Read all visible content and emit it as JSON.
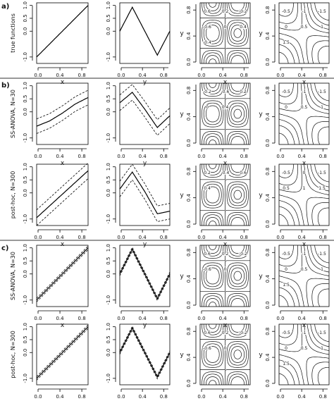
{
  "panel_labels": [
    "a)",
    "b)",
    "c)"
  ],
  "row_labels": [
    "true functions",
    "SS-ANOVA, N=30",
    "post-hoc, N=300",
    "SS-ANOVA, N=30",
    "post-hoc, N=300"
  ],
  "axis_labels": {
    "x": "x",
    "y": "y"
  },
  "x_ticks": [
    "0.0",
    "0.4",
    "0.8"
  ],
  "y_ticks_1d": [
    "-1.0",
    "0.0",
    "0.5",
    "1.0"
  ],
  "y_ticks_2d": [
    "0.0",
    "0.4",
    "0.8"
  ],
  "chart_data": [
    {
      "type": "line",
      "row": "a",
      "panel": "f1",
      "x": [
        0.0,
        0.25,
        0.5,
        0.75,
        1.0
      ],
      "series": [
        {
          "values": [
            -1.0,
            -0.5,
            0.0,
            0.5,
            1.0
          ]
        }
      ],
      "ylim": [
        -1.25,
        1.1
      ],
      "xlabel": "x"
    },
    {
      "type": "line",
      "row": "a",
      "panel": "f2",
      "x": [
        0.0,
        0.25,
        0.5,
        0.75,
        1.0
      ],
      "series": [
        {
          "values": [
            0.0,
            0.93,
            0.0,
            -0.93,
            0.0
          ]
        }
      ],
      "ylim": [
        -1.25,
        1.1
      ],
      "xlabel": "y"
    },
    {
      "type": "contour",
      "row": "a",
      "panel": "f3",
      "levels_labeled": [
        "0.6",
        "0.2",
        "-0.2",
        "-0.6",
        "0",
        "0.4",
        "-0.4"
      ],
      "xlabel": "x",
      "ylabel": "y"
    },
    {
      "type": "contour",
      "row": "a",
      "panel": "f4",
      "levels_labeled": [
        "-0.5",
        "-1",
        "-1.5",
        "0",
        "0.5",
        "1",
        "1.5"
      ],
      "xlabel": "x",
      "ylabel": "y"
    },
    {
      "type": "line",
      "row": "b1",
      "panel": "f1",
      "x": [
        0.0,
        0.25,
        0.5,
        0.75,
        1.0
      ],
      "series": [
        {
          "values": [
            -0.55,
            -0.35,
            -0.05,
            0.3,
            0.55
          ]
        }
      ],
      "band_width": 0.28,
      "ylim": [
        -1.25,
        1.1
      ],
      "xlabel": "x"
    },
    {
      "type": "line",
      "row": "b1",
      "panel": "f2",
      "x": [
        0.0,
        0.25,
        0.5,
        0.75,
        1.0
      ],
      "series": [
        {
          "values": [
            0.35,
            0.75,
            0.1,
            -0.6,
            -0.15
          ]
        }
      ],
      "band_width": 0.3,
      "ylim": [
        -1.25,
        1.1
      ],
      "xlabel": "y"
    },
    {
      "type": "contour",
      "row": "b1",
      "panel": "f3",
      "levels_labeled": [
        "-0.2",
        "-0.6",
        "0.2",
        "0",
        "0.4"
      ],
      "xlabel": "x",
      "ylabel": "y"
    },
    {
      "type": "contour",
      "row": "b1",
      "panel": "f4",
      "levels_labeled": [
        "-0.5",
        "-1",
        "-1.5",
        "0",
        "0.5",
        "1"
      ],
      "xlabel": "x",
      "ylabel": "y"
    },
    {
      "type": "line",
      "row": "b2",
      "panel": "f1",
      "x": [
        0.0,
        0.25,
        0.5,
        0.75,
        1.0
      ],
      "series": [
        {
          "values": [
            -0.95,
            -0.5,
            -0.05,
            0.4,
            0.85
          ]
        }
      ],
      "band_width": 0.3,
      "ylim": [
        -1.25,
        1.1
      ],
      "xlabel": "x"
    },
    {
      "type": "line",
      "row": "b2",
      "panel": "f2",
      "x": [
        0.0,
        0.25,
        0.5,
        0.75,
        1.0
      ],
      "series": [
        {
          "values": [
            0.15,
            0.8,
            0.05,
            -0.8,
            -0.7
          ]
        }
      ],
      "band_width": 0.3,
      "ylim": [
        -1.25,
        1.1
      ],
      "xlabel": "y"
    },
    {
      "type": "contour",
      "row": "b2",
      "panel": "f3",
      "levels_labeled": [
        "0.2",
        "-0.4",
        "0.6",
        "0.4"
      ],
      "xlabel": "x",
      "ylabel": "y"
    },
    {
      "type": "contour",
      "row": "b2",
      "panel": "f4",
      "levels_labeled": [
        "-0.5",
        "0",
        "-1.5",
        "0.5",
        "1",
        "1.5"
      ],
      "xlabel": "x",
      "ylabel": "y"
    },
    {
      "type": "line",
      "row": "c1",
      "panel": "f1",
      "x": [
        0.0,
        0.25,
        0.5,
        0.75,
        1.0
      ],
      "series": [
        {
          "values": [
            -1.0,
            -0.5,
            0.0,
            0.5,
            1.0
          ]
        }
      ],
      "band_width": 0.07,
      "ylim": [
        -1.25,
        1.1
      ],
      "xlabel": "x"
    },
    {
      "type": "line",
      "row": "c1",
      "panel": "f2",
      "x": [
        0.0,
        0.25,
        0.5,
        0.75,
        1.0
      ],
      "series": [
        {
          "values": [
            0.0,
            0.95,
            0.0,
            -0.95,
            0.0
          ]
        }
      ],
      "band_width": 0.07,
      "ylim": [
        -1.25,
        1.1
      ],
      "xlabel": "y"
    },
    {
      "type": "contour",
      "row": "c1",
      "panel": "f3",
      "levels_labeled": [
        "0.6",
        "0.2",
        "-0.2",
        "-0.6",
        "0"
      ],
      "xlabel": "x",
      "ylabel": "y"
    },
    {
      "type": "contour",
      "row": "c1",
      "panel": "f4",
      "levels_labeled": [
        "-0.5",
        "-1",
        "-1.5",
        "0",
        "0.5",
        "1",
        "1.5"
      ],
      "xlabel": "x",
      "ylabel": "y"
    },
    {
      "type": "line",
      "row": "c2",
      "panel": "f1",
      "x": [
        0.0,
        0.25,
        0.5,
        0.75,
        1.0
      ],
      "series": [
        {
          "values": [
            -1.0,
            -0.5,
            0.0,
            0.5,
            1.0
          ]
        }
      ],
      "band_width": 0.07,
      "ylim": [
        -1.25,
        1.1
      ],
      "xlabel": "x"
    },
    {
      "type": "line",
      "row": "c2",
      "panel": "f2",
      "x": [
        0.0,
        0.25,
        0.5,
        0.75,
        1.0
      ],
      "series": [
        {
          "values": [
            0.0,
            0.95,
            0.0,
            -0.95,
            0.0
          ]
        }
      ],
      "band_width": 0.07,
      "ylim": [
        -1.25,
        1.1
      ],
      "xlabel": "y"
    },
    {
      "type": "contour",
      "row": "c2",
      "panel": "f3",
      "levels_labeled": [
        "0.6",
        "0.2",
        "-0.2",
        "-0.6",
        "0"
      ],
      "xlabel": "x",
      "ylabel": "y"
    },
    {
      "type": "contour",
      "row": "c2",
      "panel": "f4",
      "levels_labeled": [
        "-0.5",
        "-1",
        "-1.5",
        "0",
        "0.5",
        "1",
        "1.5"
      ],
      "xlabel": "x",
      "ylabel": "y"
    }
  ]
}
